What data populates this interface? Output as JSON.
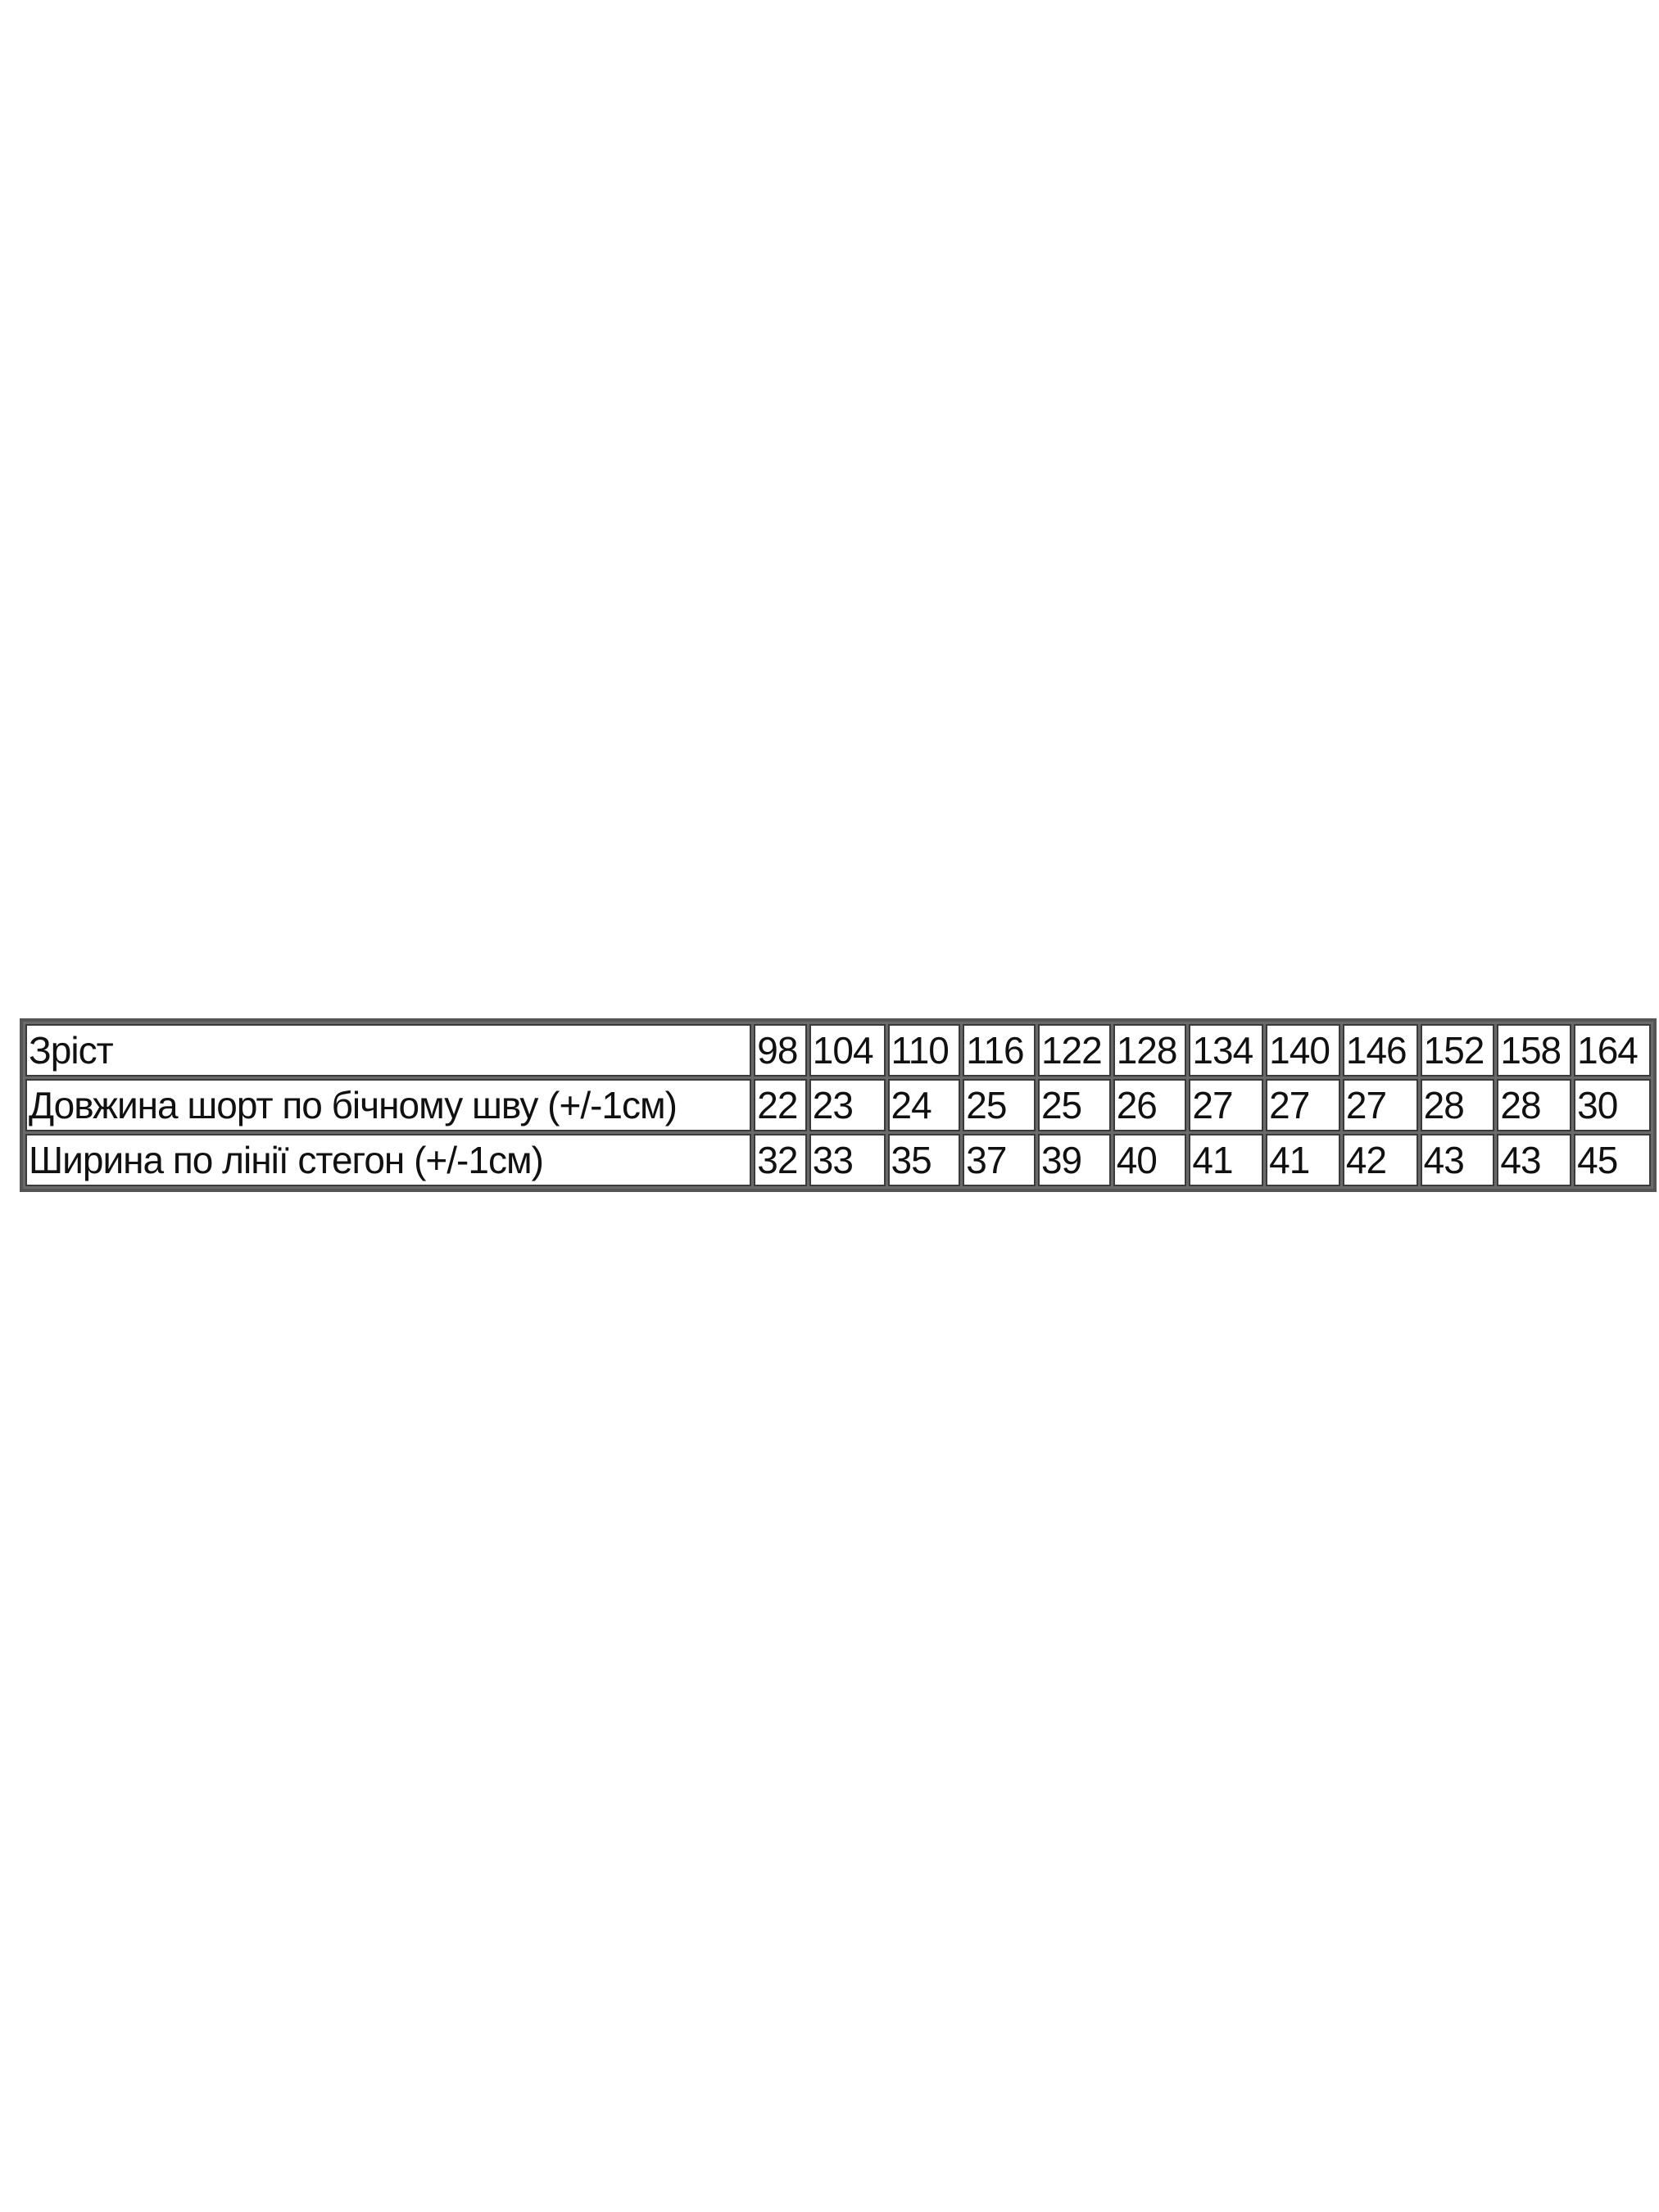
{
  "table": {
    "rows": [
      {
        "label": "Зріст",
        "values": [
          "98",
          "104",
          "110",
          "116",
          "122",
          "128",
          "134",
          "140",
          "146",
          "152",
          "158",
          "164"
        ]
      },
      {
        "label": "Довжина шорт по бічному шву (+/-1см)",
        "values": [
          "22",
          "23",
          "24",
          "25",
          "25",
          "26",
          "27",
          "27",
          "27",
          "28",
          "28",
          "30"
        ]
      },
      {
        "label": "Ширина по лінії стегон (+/-1см)",
        "values": [
          "32",
          "33",
          "35",
          "37",
          "39",
          "40",
          "41",
          "41",
          "42",
          "43",
          "43",
          "45"
        ]
      }
    ]
  }
}
